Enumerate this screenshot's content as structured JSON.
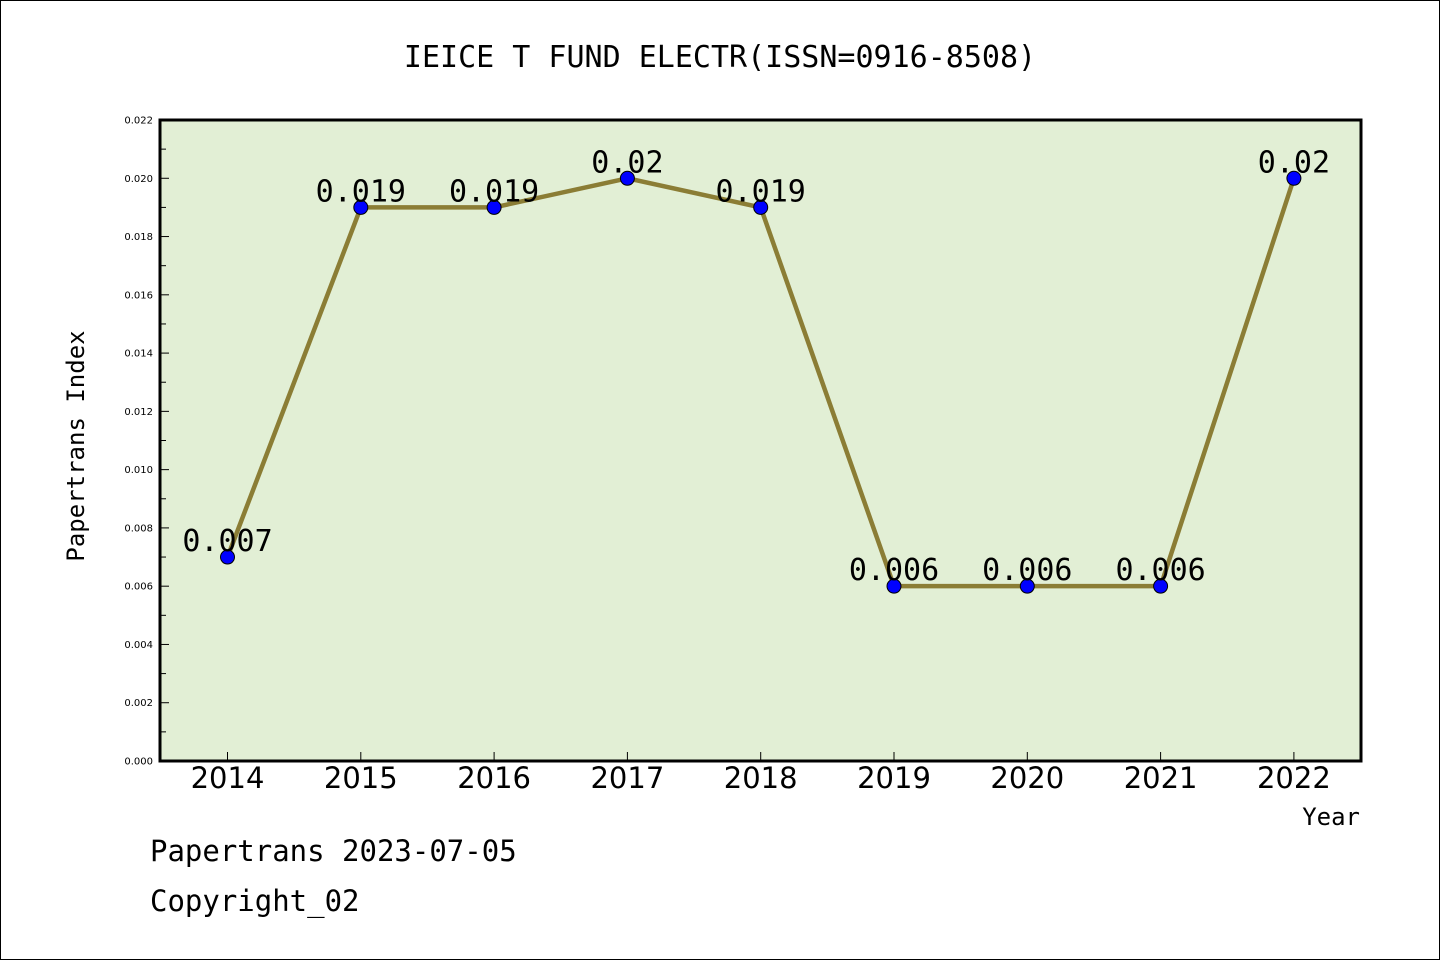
{
  "chart_data": {
    "type": "line",
    "title": "IEICE T FUND ELECTR(ISSN=0916-8508)",
    "xlabel": "Year",
    "ylabel": "Papertrans Index",
    "categories": [
      "2014",
      "2015",
      "2016",
      "2017",
      "2018",
      "2019",
      "2020",
      "2021",
      "2022"
    ],
    "series": [
      {
        "values": [
          0.007,
          0.019,
          0.019,
          0.02,
          0.019,
          0.006,
          0.006,
          0.006,
          0.02
        ],
        "labels": [
          "0.007",
          "0.019",
          "0.019",
          "0.02",
          "0.019",
          "0.006",
          "0.006",
          "0.006",
          "0.02"
        ]
      }
    ],
    "ylim": [
      0,
      0.022
    ],
    "yticks": [
      "0.000",
      "0.002",
      "0.004",
      "0.006",
      "0.008",
      "0.010",
      "0.012",
      "0.014",
      "0.016",
      "0.018",
      "0.020",
      "0.022"
    ],
    "grid": false,
    "legend": "none",
    "colors": {
      "plot_background": "#e2efd5",
      "line": "#8b7d35",
      "marker": "#0000ff"
    }
  },
  "footer": {
    "date_line": "Papertrans 2023-07-05",
    "copyright": "Copyright_02"
  }
}
